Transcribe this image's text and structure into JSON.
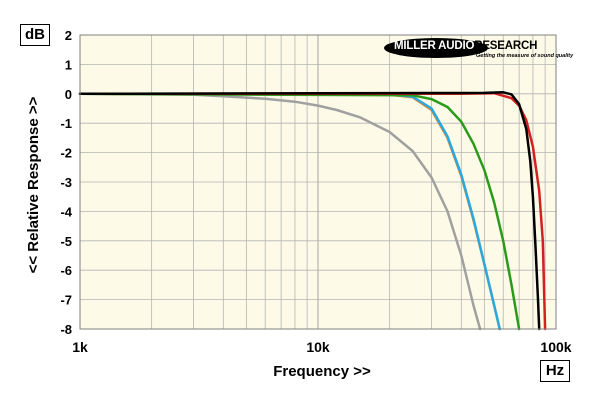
{
  "units": {
    "y": "dB",
    "x": "Hz"
  },
  "logo": {
    "primary": "MILLER AUDIO",
    "secondary": "RESEARCH",
    "tagline": "Getting the measure of sound quality"
  },
  "colors": {
    "plot_bg": "#fdfbe8",
    "grid": "#b4b4b4"
  },
  "chart_data": {
    "type": "line",
    "xlabel": "Frequency >>",
    "ylabel": "<< Relative Response >>",
    "x_scale": "log",
    "xlim": [
      1000,
      100000
    ],
    "ylim": [
      -8,
      2
    ],
    "grid": true,
    "x_ticks": [
      {
        "value": 1000,
        "label": "1k"
      },
      {
        "value": 10000,
        "label": "10k"
      },
      {
        "value": 100000,
        "label": "100k"
      }
    ],
    "y_ticks": [
      {
        "value": 2,
        "label": "2"
      },
      {
        "value": 1,
        "label": "1"
      },
      {
        "value": 0,
        "label": "0"
      },
      {
        "value": -1,
        "label": "-1"
      },
      {
        "value": -2,
        "label": "-2"
      },
      {
        "value": -3,
        "label": "-3"
      },
      {
        "value": -4,
        "label": "-4"
      },
      {
        "value": -5,
        "label": "-5"
      },
      {
        "value": -6,
        "label": "-6"
      },
      {
        "value": -7,
        "label": "-7"
      },
      {
        "value": -8,
        "label": "-8"
      }
    ],
    "series": [
      {
        "color": "#a0a0a0",
        "points": [
          [
            1000,
            0
          ],
          [
            3000,
            -0.03
          ],
          [
            4000,
            -0.08
          ],
          [
            6000,
            -0.17
          ],
          [
            8000,
            -0.27
          ],
          [
            10000,
            -0.4
          ],
          [
            12000,
            -0.55
          ],
          [
            15000,
            -0.8
          ],
          [
            20000,
            -1.3
          ],
          [
            25000,
            -1.95
          ],
          [
            30000,
            -2.85
          ],
          [
            35000,
            -4.0
          ],
          [
            40000,
            -5.5
          ],
          [
            45000,
            -7.2
          ],
          [
            48000,
            -8.0
          ]
        ]
      },
      {
        "color": "#e08a2a",
        "points": [
          [
            1000,
            0
          ],
          [
            20000,
            -0.03
          ],
          [
            25000,
            -0.12
          ],
          [
            30000,
            -0.55
          ],
          [
            35000,
            -1.5
          ],
          [
            40000,
            -2.8
          ],
          [
            45000,
            -4.3
          ],
          [
            50000,
            -5.8
          ],
          [
            55000,
            -7.2
          ],
          [
            58000,
            -8.0
          ]
        ]
      },
      {
        "color": "#2aa8e0",
        "points": [
          [
            1000,
            0
          ],
          [
            20000,
            -0.02
          ],
          [
            25000,
            -0.1
          ],
          [
            30000,
            -0.5
          ],
          [
            35000,
            -1.45
          ],
          [
            40000,
            -2.75
          ],
          [
            45000,
            -4.25
          ],
          [
            50000,
            -5.8
          ],
          [
            55000,
            -7.2
          ],
          [
            58000,
            -8.0
          ]
        ]
      },
      {
        "color": "#2a9a1a",
        "points": [
          [
            1000,
            0
          ],
          [
            25000,
            -0.05
          ],
          [
            30000,
            -0.18
          ],
          [
            35000,
            -0.45
          ],
          [
            40000,
            -0.95
          ],
          [
            45000,
            -1.7
          ],
          [
            50000,
            -2.6
          ],
          [
            55000,
            -3.7
          ],
          [
            60000,
            -5.0
          ],
          [
            65000,
            -6.5
          ],
          [
            70000,
            -8.0
          ]
        ]
      },
      {
        "color": "#d42020",
        "points": [
          [
            1000,
            0
          ],
          [
            40000,
            0
          ],
          [
            55000,
            0.02
          ],
          [
            65000,
            -0.15
          ],
          [
            70000,
            -0.4
          ],
          [
            75000,
            -0.9
          ],
          [
            80000,
            -1.8
          ],
          [
            85000,
            -3.3
          ],
          [
            88000,
            -5.0
          ],
          [
            90000,
            -8.0
          ]
        ]
      },
      {
        "color": "#000000",
        "points": [
          [
            1000,
            0
          ],
          [
            50000,
            0.03
          ],
          [
            60000,
            0.05
          ],
          [
            65000,
            -0.02
          ],
          [
            70000,
            -0.35
          ],
          [
            75000,
            -1.2
          ],
          [
            78000,
            -2.3
          ],
          [
            80000,
            -3.5
          ],
          [
            82000,
            -5.2
          ],
          [
            84000,
            -7.0
          ],
          [
            85000,
            -8.0
          ]
        ]
      }
    ]
  }
}
